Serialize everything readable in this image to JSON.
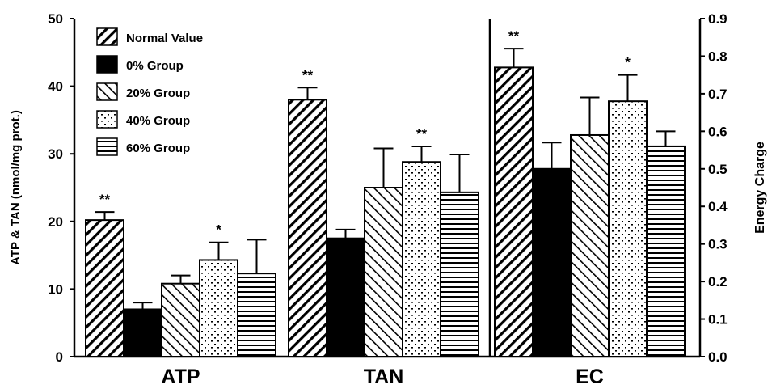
{
  "chart_data": {
    "type": "bar",
    "title": "",
    "categories": [
      "ATP",
      "TAN",
      "EC"
    ],
    "left_axis": {
      "label": "ATP & TAN (nmol/mg prot.)",
      "ylim": [
        0,
        50
      ],
      "ticks": [
        "0",
        "10",
        "20",
        "30",
        "40",
        "50"
      ],
      "applies_to": [
        "ATP",
        "TAN"
      ]
    },
    "right_axis": {
      "label": "Energy Charge",
      "ylim": [
        0,
        0.9
      ],
      "ticks": [
        "0.0",
        "0.1",
        "0.2",
        "0.3",
        "0.4",
        "0.5",
        "0.6",
        "0.7",
        "0.8",
        "0.9"
      ],
      "applies_to": [
        "EC"
      ]
    },
    "grid": false,
    "legend": {
      "placement": "top-left"
    },
    "series": [
      {
        "name": "Normal Value",
        "pattern": "diag-back",
        "values": [
          20.2,
          38.0,
          0.77
        ],
        "errors": [
          1.2,
          1.8,
          0.05
        ],
        "significance": [
          "**",
          "**",
          "**"
        ]
      },
      {
        "name": "0% Group",
        "pattern": "solid",
        "values": [
          7.0,
          17.5,
          0.5
        ],
        "errors": [
          1.0,
          1.3,
          0.07
        ],
        "significance": [
          "",
          "",
          ""
        ]
      },
      {
        "name": "20% Group",
        "pattern": "diag-fwd",
        "values": [
          10.8,
          25.0,
          0.59
        ],
        "errors": [
          1.2,
          5.8,
          0.1
        ],
        "significance": [
          "",
          "",
          ""
        ]
      },
      {
        "name": "40% Group",
        "pattern": "dots",
        "values": [
          14.3,
          28.8,
          0.68
        ],
        "errors": [
          2.6,
          2.3,
          0.07
        ],
        "significance": [
          "*",
          "**",
          "*"
        ]
      },
      {
        "name": "60% Group",
        "pattern": "horiz",
        "values": [
          12.3,
          24.3,
          0.56
        ],
        "errors": [
          5.0,
          5.6,
          0.04
        ],
        "significance": [
          "",
          "",
          ""
        ]
      }
    ]
  },
  "colors": {
    "ink": "#000000",
    "background": "#ffffff"
  }
}
